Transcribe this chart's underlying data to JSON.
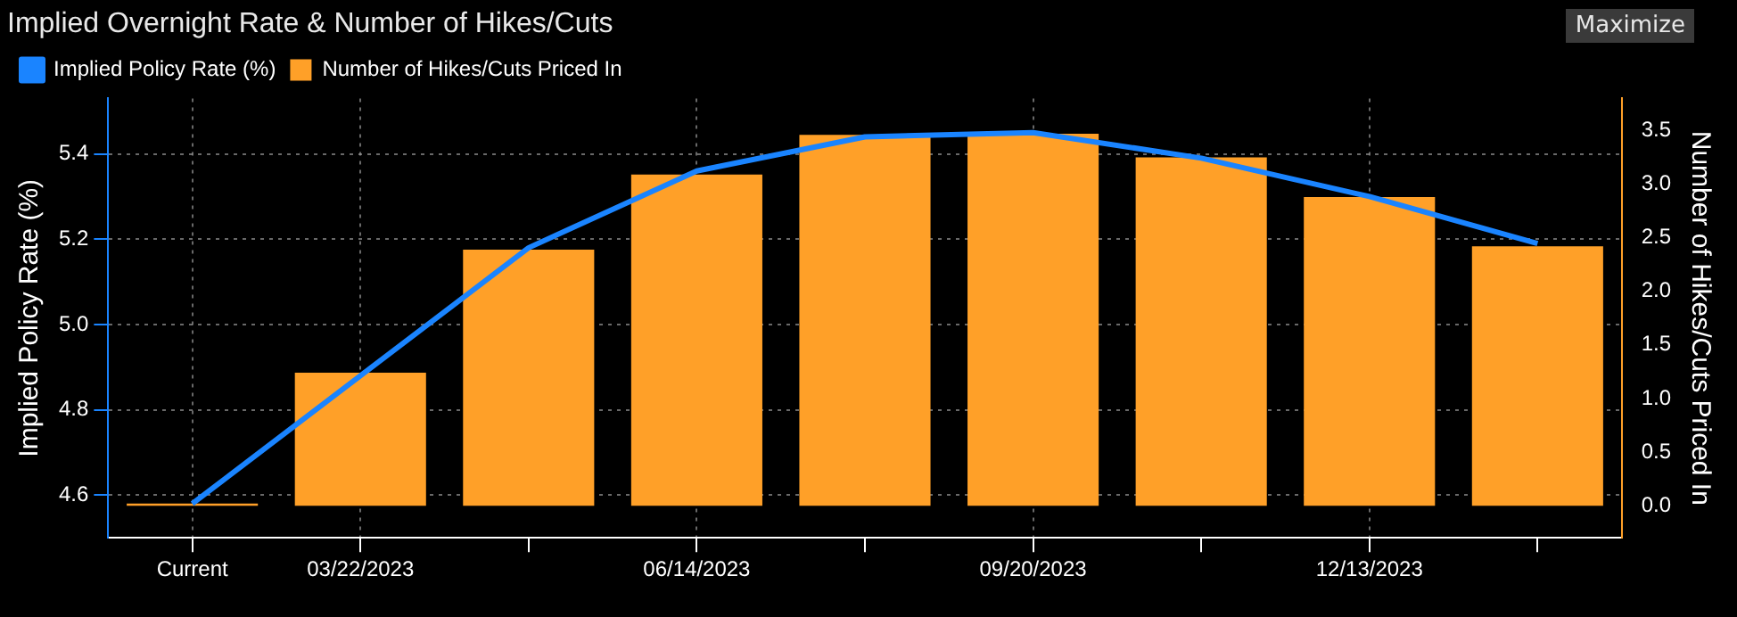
{
  "chart_data": {
    "type": "bar",
    "title": "Implied Overnight Rate & Number of Hikes/Cuts",
    "ylabel": "Implied Policy Rate (%)",
    "y2label": "Number of Hikes/Cuts Priced In",
    "categories": [
      "Current",
      "03/22/2023",
      null,
      "06/14/2023",
      null,
      "09/20/2023",
      null,
      "12/13/2023",
      null
    ],
    "series": [
      {
        "name": "Implied Policy Rate (%)",
        "type": "line",
        "axis": "y",
        "color": "#1a84ff",
        "values": [
          4.58,
          4.88,
          5.18,
          5.36,
          5.44,
          5.45,
          5.39,
          5.3,
          5.19
        ]
      },
      {
        "name": "Number of Hikes/Cuts Priced In",
        "axis": "y2",
        "color": "#ffa028",
        "values": [
          0.02,
          1.24,
          2.39,
          3.09,
          3.46,
          3.47,
          3.25,
          2.88,
          2.42
        ]
      }
    ],
    "ylim": [
      4.5,
      5.53
    ],
    "yticks": [
      4.6,
      4.8,
      {
        "value": 5,
        "label": "5.0"
      },
      5.2,
      5.4
    ],
    "y2lim": [
      -0.3,
      3.8
    ],
    "y2ticks": [
      {
        "value": 0,
        "label": "0.0"
      },
      0.5,
      {
        "value": 1,
        "label": "1.0"
      },
      1.5,
      {
        "value": 2,
        "label": "2.0"
      },
      2.5,
      {
        "value": 3,
        "label": "3.0"
      },
      3.5
    ],
    "grid": true,
    "legend": "top left",
    "marker": "none",
    "annotations": [
      "Maximize"
    ]
  }
}
